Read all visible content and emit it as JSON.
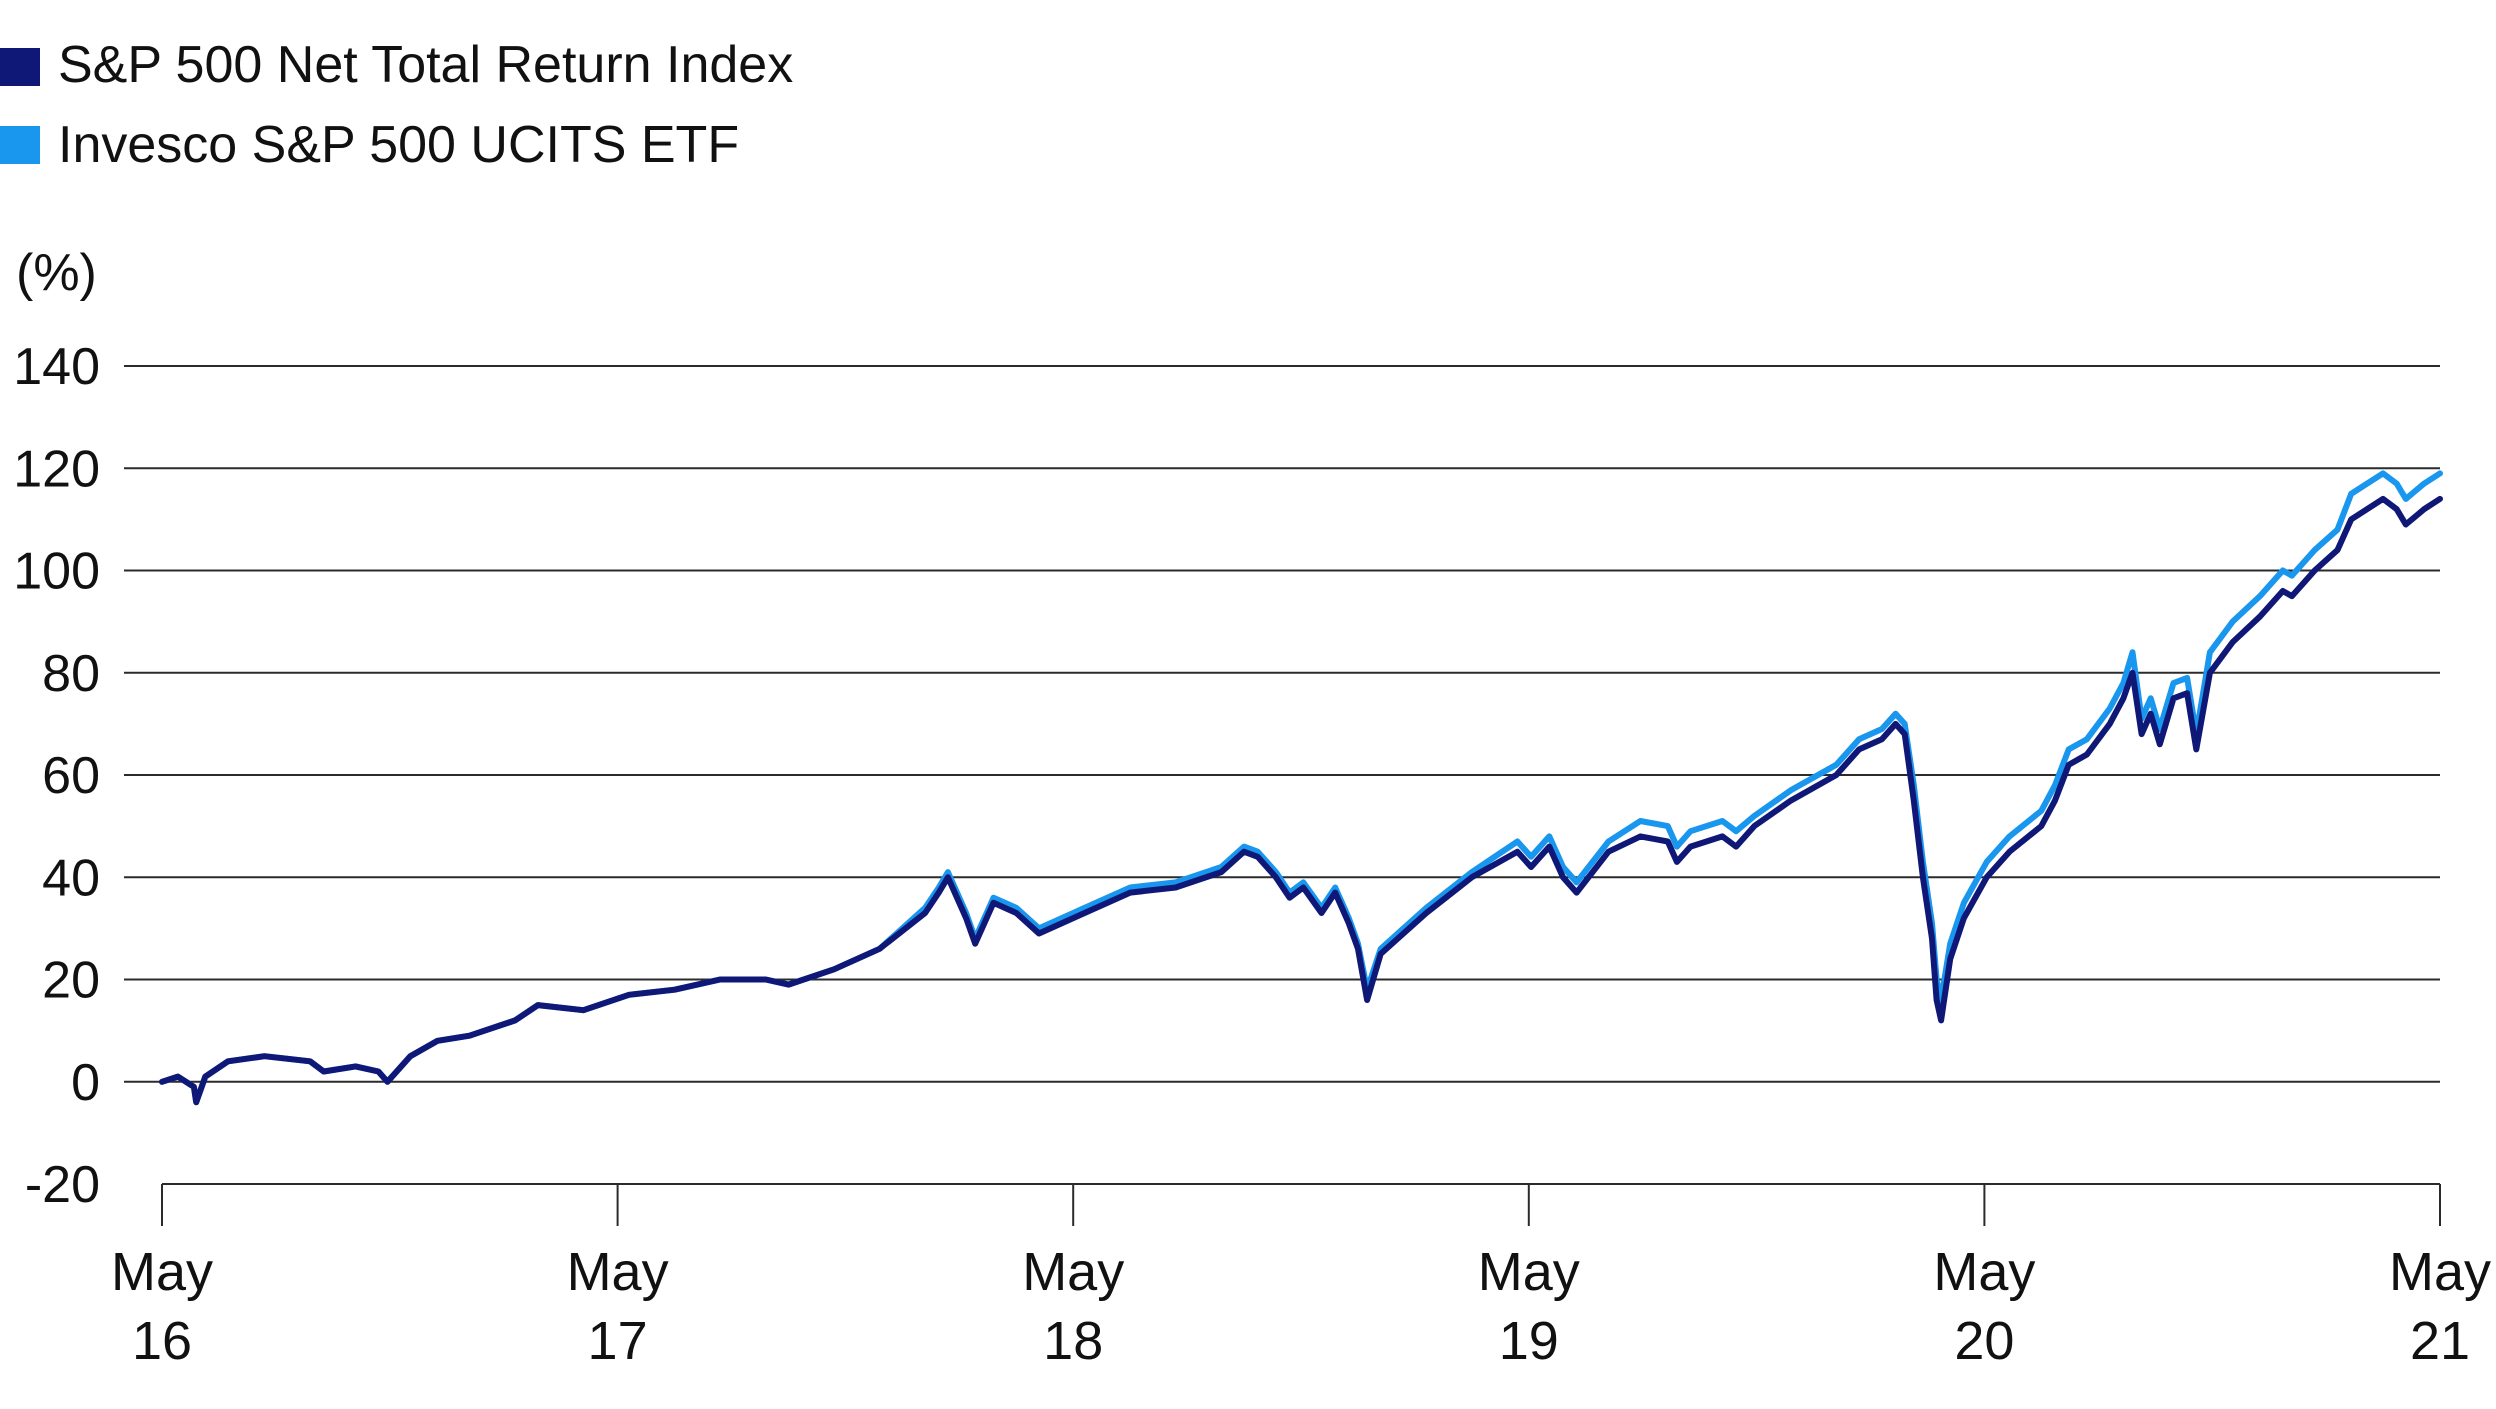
{
  "chart_data": {
    "type": "line",
    "title": "",
    "ylabel": "(%)",
    "xlabel": "",
    "ylim": [
      -20,
      140
    ],
    "yticks": [
      -20,
      0,
      20,
      40,
      60,
      80,
      100,
      120,
      140
    ],
    "grid": true,
    "legend_position": "top-left",
    "x_start": 2016.375,
    "x_end": 2021.375,
    "xticks": [
      {
        "label": [
          "May",
          "16"
        ],
        "x": 2016.375
      },
      {
        "label": [
          "May",
          "17"
        ],
        "x": 2017.375
      },
      {
        "label": [
          "May",
          "18"
        ],
        "x": 2018.375
      },
      {
        "label": [
          "May",
          "19"
        ],
        "x": 2019.375
      },
      {
        "label": [
          "May",
          "20"
        ],
        "x": 2020.375
      },
      {
        "label": [
          "May",
          "21"
        ],
        "x": 2021.375
      }
    ],
    "series": [
      {
        "name": "S&P 500 Net Total Return Index",
        "color": "#101877",
        "points": [
          [
            2016.375,
            0
          ],
          [
            2016.41,
            1
          ],
          [
            2016.445,
            -1
          ],
          [
            2016.45,
            -4
          ],
          [
            2016.47,
            1
          ],
          [
            2016.52,
            4
          ],
          [
            2016.6,
            5
          ],
          [
            2016.7,
            4
          ],
          [
            2016.73,
            2
          ],
          [
            2016.8,
            3
          ],
          [
            2016.85,
            2
          ],
          [
            2016.87,
            0
          ],
          [
            2016.92,
            5
          ],
          [
            2016.98,
            8
          ],
          [
            2017.05,
            9
          ],
          [
            2017.15,
            12
          ],
          [
            2017.2,
            15
          ],
          [
            2017.3,
            14
          ],
          [
            2017.4,
            17
          ],
          [
            2017.5,
            18
          ],
          [
            2017.6,
            20
          ],
          [
            2017.7,
            20
          ],
          [
            2017.75,
            19
          ],
          [
            2017.85,
            22
          ],
          [
            2017.95,
            26
          ],
          [
            2018.05,
            33
          ],
          [
            2018.08,
            37
          ],
          [
            2018.1,
            40
          ],
          [
            2018.14,
            32
          ],
          [
            2018.16,
            27
          ],
          [
            2018.2,
            35
          ],
          [
            2018.25,
            33
          ],
          [
            2018.3,
            29
          ],
          [
            2018.4,
            33
          ],
          [
            2018.5,
            37
          ],
          [
            2018.6,
            38
          ],
          [
            2018.7,
            41
          ],
          [
            2018.75,
            45
          ],
          [
            2018.78,
            44
          ],
          [
            2018.82,
            40
          ],
          [
            2018.85,
            36
          ],
          [
            2018.88,
            38
          ],
          [
            2018.92,
            33
          ],
          [
            2018.95,
            37
          ],
          [
            2018.98,
            31
          ],
          [
            2019.0,
            26
          ],
          [
            2019.02,
            16
          ],
          [
            2019.05,
            25
          ],
          [
            2019.15,
            33
          ],
          [
            2019.25,
            40
          ],
          [
            2019.35,
            45
          ],
          [
            2019.38,
            42
          ],
          [
            2019.42,
            46
          ],
          [
            2019.45,
            40
          ],
          [
            2019.48,
            37
          ],
          [
            2019.55,
            45
          ],
          [
            2019.62,
            48
          ],
          [
            2019.68,
            47
          ],
          [
            2019.7,
            43
          ],
          [
            2019.73,
            46
          ],
          [
            2019.8,
            48
          ],
          [
            2019.83,
            46
          ],
          [
            2019.87,
            50
          ],
          [
            2019.95,
            55
          ],
          [
            2020.05,
            60
          ],
          [
            2020.1,
            65
          ],
          [
            2020.15,
            67
          ],
          [
            2020.18,
            70
          ],
          [
            2020.2,
            68
          ],
          [
            2020.22,
            55
          ],
          [
            2020.24,
            40
          ],
          [
            2020.26,
            28
          ],
          [
            2020.27,
            16
          ],
          [
            2020.28,
            12
          ],
          [
            2020.3,
            24
          ],
          [
            2020.33,
            32
          ],
          [
            2020.38,
            40
          ],
          [
            2020.43,
            45
          ],
          [
            2020.5,
            50
          ],
          [
            2020.53,
            55
          ],
          [
            2020.56,
            62
          ],
          [
            2020.6,
            64
          ],
          [
            2020.65,
            70
          ],
          [
            2020.68,
            75
          ],
          [
            2020.7,
            80
          ],
          [
            2020.72,
            68
          ],
          [
            2020.74,
            72
          ],
          [
            2020.76,
            66
          ],
          [
            2020.79,
            75
          ],
          [
            2020.82,
            76
          ],
          [
            2020.84,
            65
          ],
          [
            2020.87,
            80
          ],
          [
            2020.92,
            86
          ],
          [
            2020.98,
            91
          ],
          [
            2021.03,
            96
          ],
          [
            2021.05,
            95
          ],
          [
            2021.1,
            100
          ],
          [
            2021.15,
            104
          ],
          [
            2021.18,
            110
          ],
          [
            2021.25,
            114
          ],
          [
            2021.28,
            112
          ],
          [
            2021.3,
            109
          ],
          [
            2021.34,
            112
          ],
          [
            2021.375,
            114
          ]
        ]
      },
      {
        "name": "Invesco S&P 500 UCITS ETF",
        "color": "#1996EE",
        "points": [
          [
            2016.375,
            0
          ],
          [
            2016.41,
            1
          ],
          [
            2016.445,
            -1
          ],
          [
            2016.45,
            -4
          ],
          [
            2016.47,
            1
          ],
          [
            2016.52,
            4
          ],
          [
            2016.6,
            5
          ],
          [
            2016.7,
            4
          ],
          [
            2016.73,
            2
          ],
          [
            2016.8,
            3
          ],
          [
            2016.85,
            2
          ],
          [
            2016.87,
            0
          ],
          [
            2016.92,
            5
          ],
          [
            2016.98,
            8
          ],
          [
            2017.05,
            9
          ],
          [
            2017.15,
            12
          ],
          [
            2017.2,
            15
          ],
          [
            2017.3,
            14
          ],
          [
            2017.4,
            17
          ],
          [
            2017.5,
            18
          ],
          [
            2017.6,
            20
          ],
          [
            2017.7,
            20
          ],
          [
            2017.75,
            19
          ],
          [
            2017.85,
            22
          ],
          [
            2017.95,
            26
          ],
          [
            2018.05,
            34
          ],
          [
            2018.08,
            38
          ],
          [
            2018.1,
            41
          ],
          [
            2018.14,
            33
          ],
          [
            2018.16,
            28
          ],
          [
            2018.2,
            36
          ],
          [
            2018.25,
            34
          ],
          [
            2018.3,
            30
          ],
          [
            2018.4,
            34
          ],
          [
            2018.5,
            38
          ],
          [
            2018.6,
            39
          ],
          [
            2018.7,
            42
          ],
          [
            2018.75,
            46
          ],
          [
            2018.78,
            45
          ],
          [
            2018.82,
            41
          ],
          [
            2018.85,
            37
          ],
          [
            2018.88,
            39
          ],
          [
            2018.92,
            34
          ],
          [
            2018.95,
            38
          ],
          [
            2018.98,
            32
          ],
          [
            2019.0,
            27
          ],
          [
            2019.02,
            18
          ],
          [
            2019.05,
            26
          ],
          [
            2019.15,
            34
          ],
          [
            2019.25,
            41
          ],
          [
            2019.35,
            47
          ],
          [
            2019.38,
            44
          ],
          [
            2019.42,
            48
          ],
          [
            2019.45,
            42
          ],
          [
            2019.48,
            39
          ],
          [
            2019.55,
            47
          ],
          [
            2019.62,
            51
          ],
          [
            2019.68,
            50
          ],
          [
            2019.7,
            46
          ],
          [
            2019.73,
            49
          ],
          [
            2019.8,
            51
          ],
          [
            2019.83,
            49
          ],
          [
            2019.87,
            52
          ],
          [
            2019.95,
            57
          ],
          [
            2020.05,
            62
          ],
          [
            2020.1,
            67
          ],
          [
            2020.15,
            69
          ],
          [
            2020.18,
            72
          ],
          [
            2020.2,
            70
          ],
          [
            2020.22,
            58
          ],
          [
            2020.24,
            43
          ],
          [
            2020.26,
            31
          ],
          [
            2020.27,
            20
          ],
          [
            2020.28,
            16
          ],
          [
            2020.3,
            27
          ],
          [
            2020.33,
            35
          ],
          [
            2020.38,
            43
          ],
          [
            2020.43,
            48
          ],
          [
            2020.5,
            53
          ],
          [
            2020.53,
            58
          ],
          [
            2020.56,
            65
          ],
          [
            2020.6,
            67
          ],
          [
            2020.65,
            73
          ],
          [
            2020.68,
            78
          ],
          [
            2020.7,
            84
          ],
          [
            2020.72,
            71
          ],
          [
            2020.74,
            75
          ],
          [
            2020.76,
            69
          ],
          [
            2020.79,
            78
          ],
          [
            2020.82,
            79
          ],
          [
            2020.84,
            68
          ],
          [
            2020.87,
            84
          ],
          [
            2020.92,
            90
          ],
          [
            2020.98,
            95
          ],
          [
            2021.03,
            100
          ],
          [
            2021.05,
            99
          ],
          [
            2021.1,
            104
          ],
          [
            2021.15,
            108
          ],
          [
            2021.18,
            115
          ],
          [
            2021.25,
            119
          ],
          [
            2021.28,
            117
          ],
          [
            2021.3,
            114
          ],
          [
            2021.34,
            117
          ],
          [
            2021.375,
            119
          ]
        ]
      }
    ]
  }
}
